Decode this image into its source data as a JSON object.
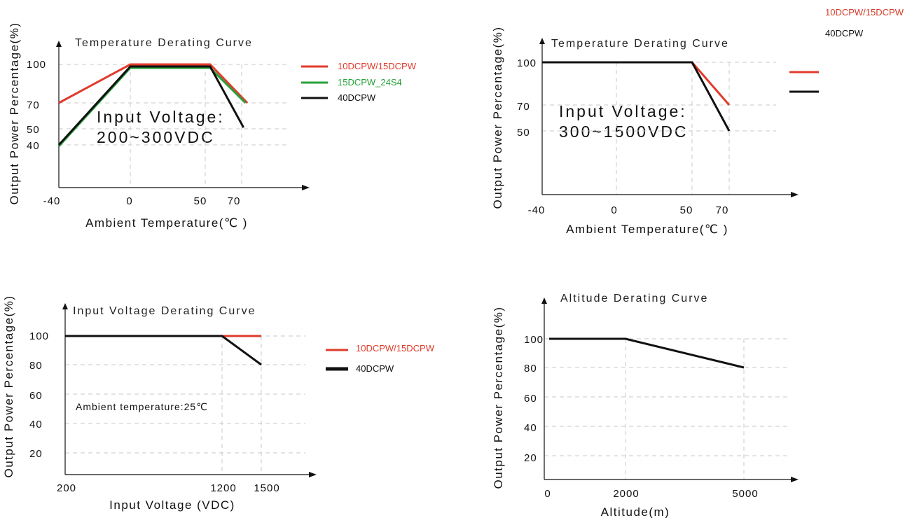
{
  "top_legend": {
    "items": [
      {
        "label": "10DCPW/15DCPW",
        "color": "#d63a2a"
      },
      {
        "label": "40DCPW",
        "color": "#111111"
      }
    ]
  },
  "chart_data": [
    {
      "type": "line",
      "title": "Temperature Derating Curve",
      "xlabel": "Ambient Temperature(℃ )",
      "ylabel": "Output Power Percentage(%)",
      "x_ticks": [
        "-40",
        "0",
        "50",
        "70"
      ],
      "y_ticks": [
        "100",
        "70",
        "50",
        "40"
      ],
      "annotation": [
        "Input Voltage:",
        "200~300VDC"
      ],
      "legend": "right",
      "grid": true,
      "series": [
        {
          "name": "10DCPW/15DCPW",
          "color": "#e03b2c",
          "x": [
            -40,
            0,
            55,
            73
          ],
          "y": [
            70,
            100,
            100,
            70
          ]
        },
        {
          "name": "15DCPW_24S4",
          "color": "#26a13a",
          "x": [
            -40,
            0,
            55,
            72
          ],
          "y": [
            39,
            98,
            98,
            70
          ]
        },
        {
          "name": "40DCPW",
          "color": "#111111",
          "x": [
            -40,
            0,
            55,
            71
          ],
          "y": [
            40,
            99,
            99,
            51
          ]
        }
      ]
    },
    {
      "type": "line",
      "title": "Temperature Derating Curve",
      "xlabel": "Ambient Temperature(℃ )",
      "ylabel": "Output Power Percentage(%)",
      "x_ticks": [
        "-40",
        "0",
        "50",
        "70"
      ],
      "y_ticks": [
        "100",
        "70",
        "50"
      ],
      "annotation": [
        "Input Voltage:",
        "300~1500VDC"
      ],
      "legend": "top-right",
      "grid": true,
      "series": [
        {
          "color": "#e03b2c",
          "x": [
            -40,
            0,
            50,
            70
          ],
          "y": [
            100,
            100,
            100,
            70
          ]
        },
        {
          "color": "#111111",
          "x": [
            -40,
            0,
            50,
            70
          ],
          "y": [
            100,
            100,
            100,
            50
          ]
        }
      ]
    },
    {
      "type": "line",
      "title": "Input Voltage Derating Curve",
      "xlabel": "Input Voltage (VDC)",
      "ylabel": "Output Power Percentage(%)",
      "x_ticks": [
        "200",
        "1200",
        "1500"
      ],
      "y_ticks": [
        "100",
        "80",
        "60",
        "40",
        "20"
      ],
      "annotation": [
        "Ambient temperature:25℃"
      ],
      "legend": "right",
      "grid": true,
      "series": [
        {
          "name": "10DCPW/15DCPW",
          "color": "#e03b2c",
          "x": [
            200,
            1200,
            1500
          ],
          "y": [
            100,
            100,
            100
          ]
        },
        {
          "name": "40DCPW",
          "color": "#111111",
          "x": [
            200,
            1200,
            1500
          ],
          "y": [
            100,
            100,
            80
          ]
        }
      ]
    },
    {
      "type": "line",
      "title": "Altitude Derating Curve",
      "xlabel": "Altitude(m)",
      "ylabel": "Output Power Percentage(%)",
      "x_ticks": [
        "0",
        "2000",
        "5000"
      ],
      "y_ticks": [
        "100",
        "80",
        "60",
        "40",
        "20"
      ],
      "legend": "none",
      "grid": true,
      "series": [
        {
          "color": "#111111",
          "x": [
            0,
            2000,
            5000
          ],
          "y": [
            100,
            100,
            80
          ]
        }
      ]
    }
  ]
}
